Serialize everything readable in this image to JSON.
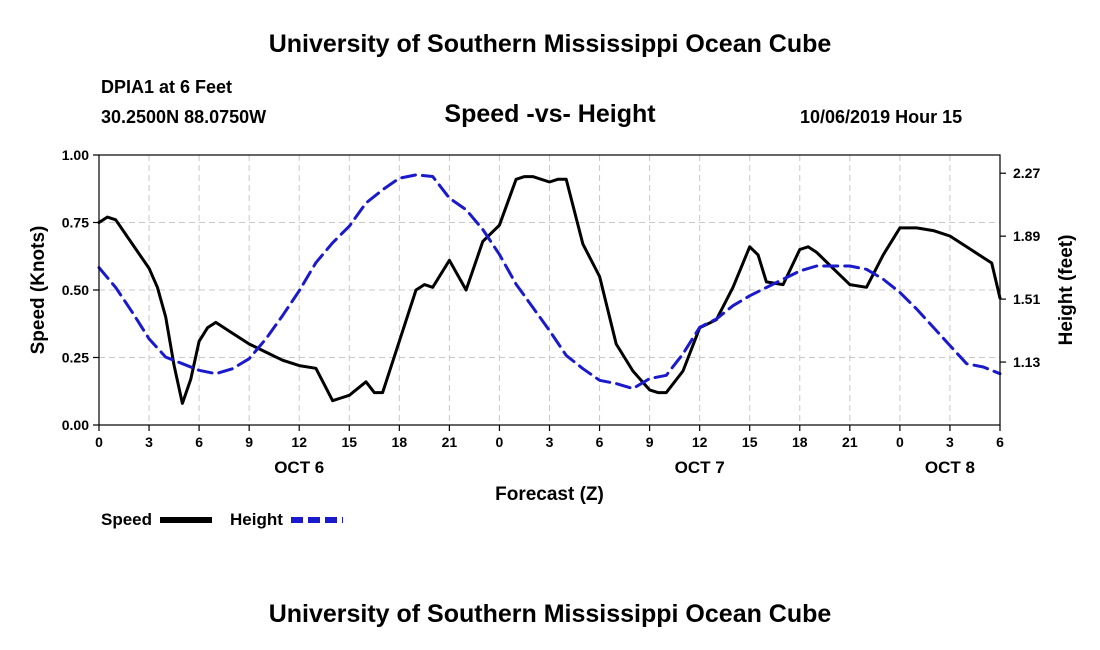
{
  "header": {
    "title": "University of Southern Mississippi Ocean Cube",
    "station": "DPIA1 at 6 Feet",
    "coords": "30.2500N 88.0750W",
    "date": "10/06/2019 Hour 15"
  },
  "footer": {
    "title": "University of Southern Mississippi Ocean Cube"
  },
  "colors": {
    "speed": "#000000",
    "height": "#1a1acc",
    "grid": "#c8c8c8"
  },
  "chart_data": {
    "type": "line",
    "title": "Speed -vs- Height",
    "xlabel": "Forecast (Z)",
    "ylabel_left": "Speed (Knots)",
    "ylabel_right": "Height (feet)",
    "x_range_hours": [
      0,
      54
    ],
    "ylim_left": [
      0,
      1
    ],
    "ylim_right": [
      0.75,
      2.38
    ],
    "x_ticks": [
      {
        "h": 0,
        "label": "0"
      },
      {
        "h": 3,
        "label": "3"
      },
      {
        "h": 6,
        "label": "6"
      },
      {
        "h": 9,
        "label": "9"
      },
      {
        "h": 12,
        "label": "12"
      },
      {
        "h": 15,
        "label": "15"
      },
      {
        "h": 18,
        "label": "18"
      },
      {
        "h": 21,
        "label": "21"
      },
      {
        "h": 24,
        "label": "0"
      },
      {
        "h": 27,
        "label": "3"
      },
      {
        "h": 30,
        "label": "6"
      },
      {
        "h": 33,
        "label": "9"
      },
      {
        "h": 36,
        "label": "12"
      },
      {
        "h": 39,
        "label": "15"
      },
      {
        "h": 42,
        "label": "18"
      },
      {
        "h": 45,
        "label": "21"
      },
      {
        "h": 48,
        "label": "0"
      },
      {
        "h": 51,
        "label": "3"
      },
      {
        "h": 54,
        "label": "6"
      }
    ],
    "day_labels": [
      {
        "h": 12,
        "label": "OCT 6"
      },
      {
        "h": 36,
        "label": "OCT 7"
      },
      {
        "h": 51,
        "label": "OCT 8"
      }
    ],
    "left_ticks": [
      {
        "v": 0,
        "label": "0.00"
      },
      {
        "v": 0.25,
        "label": "0.25"
      },
      {
        "v": 0.5,
        "label": "0.50"
      },
      {
        "v": 0.75,
        "label": "0.75"
      },
      {
        "v": 1.0,
        "label": "1.00"
      }
    ],
    "right_ticks": [
      {
        "v": 1.13,
        "label": "1.13"
      },
      {
        "v": 1.51,
        "label": "1.51"
      },
      {
        "v": 1.89,
        "label": "1.89"
      },
      {
        "v": 2.27,
        "label": "2.27"
      }
    ],
    "series": [
      {
        "name": "Speed",
        "axis": "left",
        "style": "solid",
        "x": [
          0,
          0.5,
          1,
          2,
          3,
          3.5,
          4,
          4.5,
          5,
          5.5,
          6,
          6.5,
          7,
          8,
          9,
          10,
          11,
          12,
          13,
          13.5,
          14,
          14.5,
          15,
          16,
          16.5,
          17,
          18,
          19,
          19.5,
          20,
          21,
          22,
          23,
          24,
          25,
          25.5,
          26,
          27,
          27.5,
          28,
          29,
          30,
          31,
          32,
          33,
          33.5,
          34,
          35,
          36,
          37,
          38,
          39,
          39.5,
          40,
          41,
          42,
          42.5,
          43,
          44,
          45,
          46,
          47,
          48,
          49,
          50,
          51,
          52,
          53,
          53.5,
          54
        ],
        "values": [
          0.75,
          0.77,
          0.76,
          0.67,
          0.58,
          0.51,
          0.4,
          0.22,
          0.08,
          0.17,
          0.31,
          0.36,
          0.38,
          0.34,
          0.3,
          0.27,
          0.24,
          0.22,
          0.21,
          0.15,
          0.09,
          0.1,
          0.11,
          0.16,
          0.12,
          0.12,
          0.31,
          0.5,
          0.52,
          0.51,
          0.61,
          0.5,
          0.68,
          0.74,
          0.91,
          0.92,
          0.92,
          0.9,
          0.91,
          0.91,
          0.67,
          0.55,
          0.3,
          0.2,
          0.13,
          0.12,
          0.12,
          0.2,
          0.36,
          0.39,
          0.51,
          0.66,
          0.63,
          0.53,
          0.52,
          0.65,
          0.66,
          0.64,
          0.58,
          0.52,
          0.51,
          0.63,
          0.73,
          0.73,
          0.72,
          0.7,
          0.66,
          0.62,
          0.6,
          0.47
        ]
      },
      {
        "name": "Height",
        "axis": "right",
        "style": "dashed",
        "x": [
          0,
          1,
          2,
          3,
          4,
          5,
          6,
          7,
          8,
          9,
          10,
          11,
          12,
          13,
          14,
          15,
          16,
          17,
          18,
          19,
          20,
          21,
          22,
          23,
          24,
          25,
          26,
          27,
          28,
          29,
          30,
          31,
          32,
          33,
          34,
          35,
          36,
          37,
          38,
          39,
          40,
          41,
          42,
          43,
          44,
          45,
          46,
          47,
          48,
          49,
          50,
          51,
          52,
          53,
          54
        ],
        "values": [
          1.7,
          1.58,
          1.43,
          1.27,
          1.16,
          1.12,
          1.08,
          1.06,
          1.09,
          1.15,
          1.27,
          1.41,
          1.56,
          1.73,
          1.85,
          1.95,
          2.09,
          2.17,
          2.24,
          2.26,
          2.25,
          2.12,
          2.05,
          1.93,
          1.78,
          1.6,
          1.46,
          1.32,
          1.17,
          1.09,
          1.02,
          1.0,
          0.97,
          1.03,
          1.05,
          1.18,
          1.34,
          1.39,
          1.47,
          1.53,
          1.58,
          1.63,
          1.68,
          1.71,
          1.71,
          1.71,
          1.69,
          1.63,
          1.55,
          1.45,
          1.34,
          1.23,
          1.12,
          1.1,
          1.06
        ]
      }
    ],
    "legend": [
      {
        "label": "Speed",
        "style": "solid"
      },
      {
        "label": "Height",
        "style": "dashed"
      }
    ]
  }
}
